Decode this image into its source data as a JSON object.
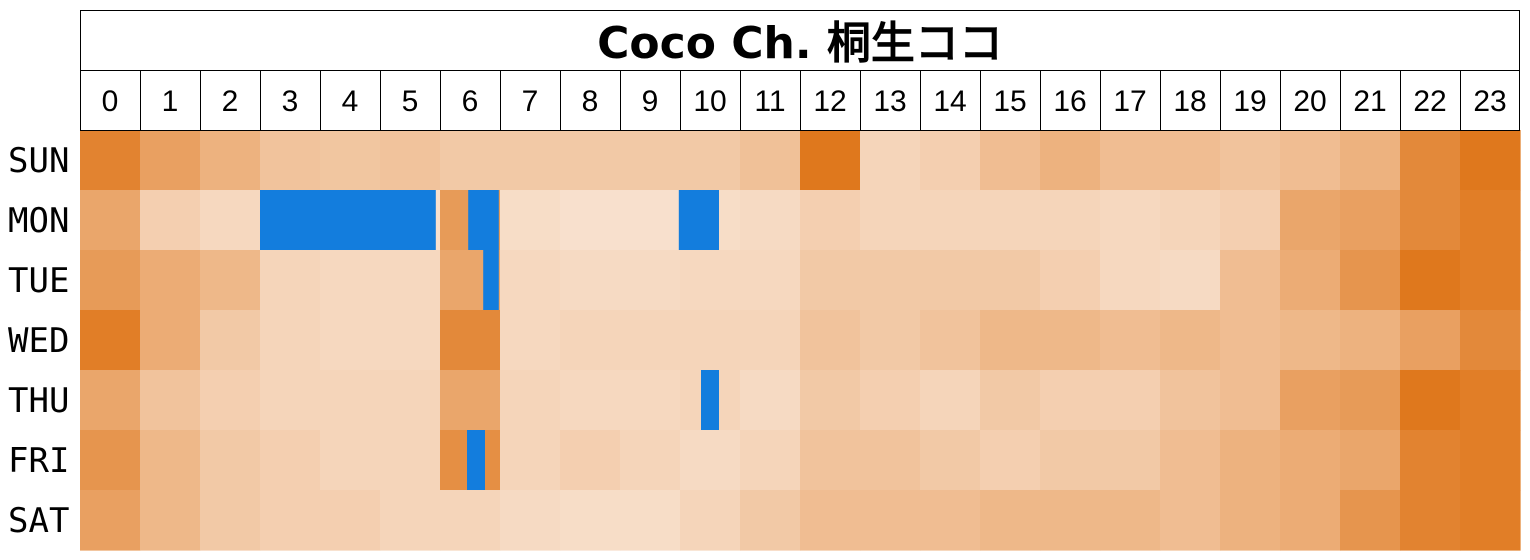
{
  "chart_data": {
    "type": "heatmap",
    "title": "Coco Ch. 桐生ココ",
    "hours": [
      "0",
      "1",
      "2",
      "3",
      "4",
      "5",
      "6",
      "7",
      "8",
      "9",
      "10",
      "11",
      "12",
      "13",
      "14",
      "15",
      "16",
      "17",
      "18",
      "19",
      "20",
      "21",
      "22",
      "23"
    ],
    "days": [
      "SUN",
      "MON",
      "TUE",
      "WED",
      "THU",
      "FRI",
      "SAT"
    ],
    "value_range": [
      0,
      1
    ],
    "colors": {
      "low": "#f9e6d7",
      "high": "#de7213",
      "highlight": "#137ddd",
      "grid": "#000000"
    },
    "values": [
      [
        0.85,
        0.6,
        0.45,
        0.3,
        0.28,
        0.3,
        0.25,
        0.25,
        0.25,
        0.25,
        0.25,
        0.32,
        0.95,
        0.15,
        0.2,
        0.35,
        0.45,
        0.35,
        0.35,
        0.3,
        0.35,
        0.45,
        0.8,
        0.95
      ],
      [
        0.55,
        0.2,
        0.12,
        0.05,
        0.05,
        0.05,
        0.65,
        0.08,
        0.05,
        0.05,
        0.08,
        0.1,
        0.2,
        0.15,
        0.15,
        0.15,
        0.15,
        0.12,
        0.15,
        0.2,
        0.55,
        0.6,
        0.8,
        0.9
      ],
      [
        0.65,
        0.5,
        0.4,
        0.15,
        0.12,
        0.12,
        0.55,
        0.12,
        0.1,
        0.1,
        0.12,
        0.12,
        0.25,
        0.25,
        0.25,
        0.25,
        0.2,
        0.12,
        0.1,
        0.35,
        0.5,
        0.7,
        0.95,
        0.9
      ],
      [
        0.9,
        0.5,
        0.25,
        0.15,
        0.12,
        0.12,
        0.8,
        0.12,
        0.15,
        0.15,
        0.15,
        0.15,
        0.3,
        0.25,
        0.3,
        0.4,
        0.4,
        0.35,
        0.4,
        0.35,
        0.4,
        0.45,
        0.6,
        0.8
      ],
      [
        0.55,
        0.3,
        0.2,
        0.15,
        0.15,
        0.15,
        0.55,
        0.15,
        0.12,
        0.12,
        0.15,
        0.1,
        0.25,
        0.2,
        0.15,
        0.25,
        0.2,
        0.2,
        0.3,
        0.35,
        0.6,
        0.65,
        0.95,
        0.9
      ],
      [
        0.7,
        0.4,
        0.25,
        0.2,
        0.15,
        0.15,
        0.75,
        0.15,
        0.2,
        0.15,
        0.1,
        0.15,
        0.3,
        0.3,
        0.25,
        0.2,
        0.25,
        0.25,
        0.35,
        0.45,
        0.5,
        0.55,
        0.85,
        0.9
      ],
      [
        0.6,
        0.4,
        0.25,
        0.2,
        0.2,
        0.15,
        0.15,
        0.1,
        0.08,
        0.08,
        0.15,
        0.25,
        0.35,
        0.35,
        0.35,
        0.4,
        0.4,
        0.4,
        0.35,
        0.45,
        0.5,
        0.7,
        0.85,
        0.9
      ]
    ],
    "highlights": [
      {
        "day": "MON",
        "start": 3.0,
        "end": 5.93
      },
      {
        "day": "MON",
        "start": 6.47,
        "end": 6.98
      },
      {
        "day": "MON",
        "start": 9.98,
        "end": 10.65
      },
      {
        "day": "TUE",
        "start": 6.72,
        "end": 6.98
      },
      {
        "day": "THU",
        "start": 10.35,
        "end": 10.65
      },
      {
        "day": "FRI",
        "start": 6.45,
        "end": 6.75
      }
    ]
  }
}
